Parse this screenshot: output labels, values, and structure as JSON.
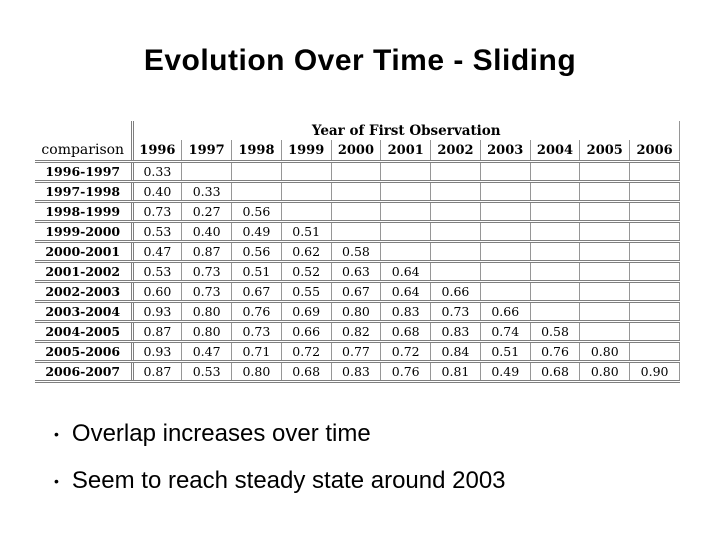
{
  "slide": {
    "title": "Evolution Over Time - Sliding",
    "bullet_glyph": "•",
    "bullets": [
      "Overlap increases over time",
      "Seem to reach steady state around 2003"
    ]
  },
  "table": {
    "group_header": "Year of First Observation",
    "corner_label": "comparison",
    "columns": [
      "1996",
      "1997",
      "1998",
      "1999",
      "2000",
      "2001",
      "2002",
      "2003",
      "2004",
      "2005",
      "2006"
    ],
    "rows": [
      {
        "label": "1996-1997",
        "values": [
          "0.33"
        ]
      },
      {
        "label": "1997-1998",
        "values": [
          "0.40",
          "0.33"
        ]
      },
      {
        "label": "1998-1999",
        "values": [
          "0.73",
          "0.27",
          "0.56"
        ]
      },
      {
        "label": "1999-2000",
        "values": [
          "0.53",
          "0.40",
          "0.49",
          "0.51"
        ]
      },
      {
        "label": "2000-2001",
        "values": [
          "0.47",
          "0.87",
          "0.56",
          "0.62",
          "0.58"
        ]
      },
      {
        "label": "2001-2002",
        "values": [
          "0.53",
          "0.73",
          "0.51",
          "0.52",
          "0.63",
          "0.64"
        ]
      },
      {
        "label": "2002-2003",
        "values": [
          "0.60",
          "0.73",
          "0.67",
          "0.55",
          "0.67",
          "0.64",
          "0.66"
        ]
      },
      {
        "label": "2003-2004",
        "values": [
          "0.93",
          "0.80",
          "0.76",
          "0.69",
          "0.80",
          "0.83",
          "0.73",
          "0.66"
        ]
      },
      {
        "label": "2004-2005",
        "values": [
          "0.87",
          "0.80",
          "0.73",
          "0.66",
          "0.82",
          "0.68",
          "0.83",
          "0.74",
          "0.58"
        ]
      },
      {
        "label": "2005-2006",
        "values": [
          "0.93",
          "0.47",
          "0.71",
          "0.72",
          "0.77",
          "0.72",
          "0.84",
          "0.51",
          "0.76",
          "0.80"
        ]
      },
      {
        "label": "2006-2007",
        "values": [
          "0.87",
          "0.53",
          "0.80",
          "0.68",
          "0.83",
          "0.76",
          "0.81",
          "0.49",
          "0.68",
          "0.80",
          "0.90"
        ]
      }
    ]
  },
  "colors": {
    "background": "#ffffff",
    "text": "#000000",
    "table_rule_double": "#7f7f7f",
    "table_rule_single": "#969696"
  }
}
